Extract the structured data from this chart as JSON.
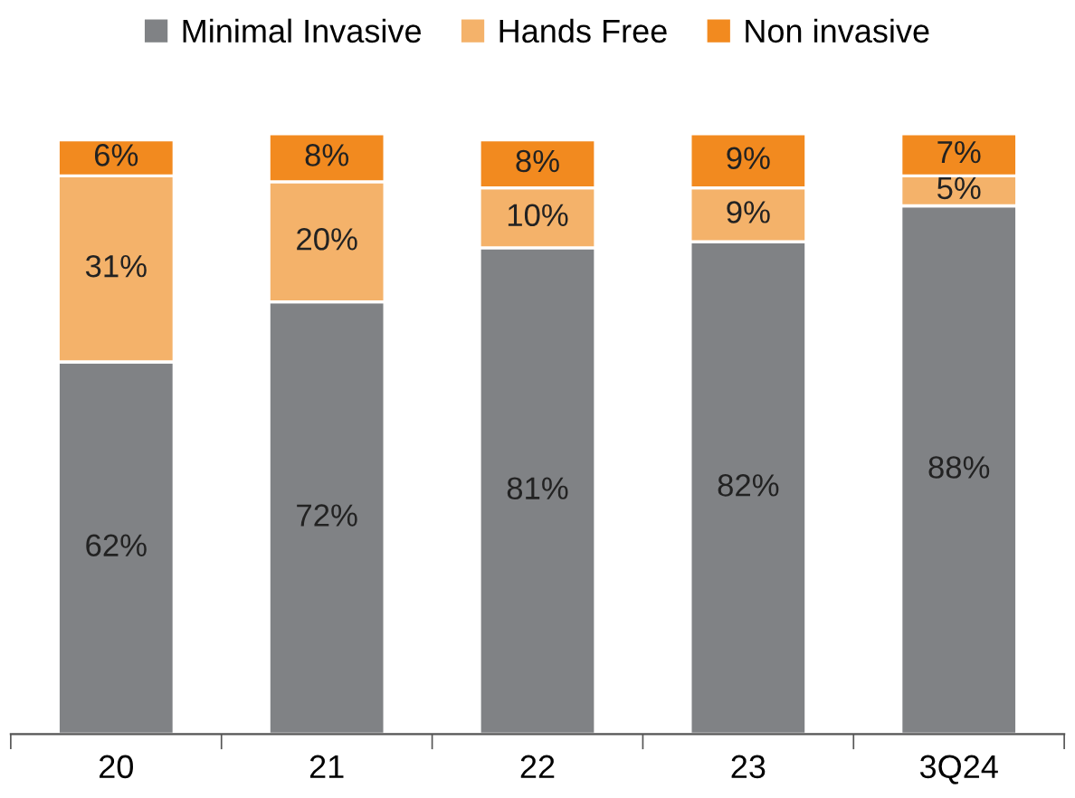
{
  "chart_data": {
    "type": "bar",
    "stacked": true,
    "legend": "top",
    "grid": false,
    "categories": [
      "20",
      "21",
      "22",
      "23",
      "3Q24"
    ],
    "series": [
      {
        "name": "Minimal Invasive",
        "color": "#808285",
        "values": [
          62,
          72,
          81,
          82,
          88
        ],
        "value_labels": [
          "62%",
          "72%",
          "81%",
          "82%",
          "88%"
        ]
      },
      {
        "name": "Hands Free",
        "color": "#f4b26a",
        "values": [
          31,
          20,
          10,
          9,
          5
        ],
        "value_labels": [
          "31%",
          "20%",
          "10%",
          "9%",
          "5%"
        ]
      },
      {
        "name": "Non invasive",
        "color": "#f28a1f",
        "values": [
          6,
          8,
          8,
          9,
          7
        ],
        "value_labels": [
          "6%",
          "8%",
          "8%",
          "9%",
          "7%"
        ]
      }
    ]
  }
}
